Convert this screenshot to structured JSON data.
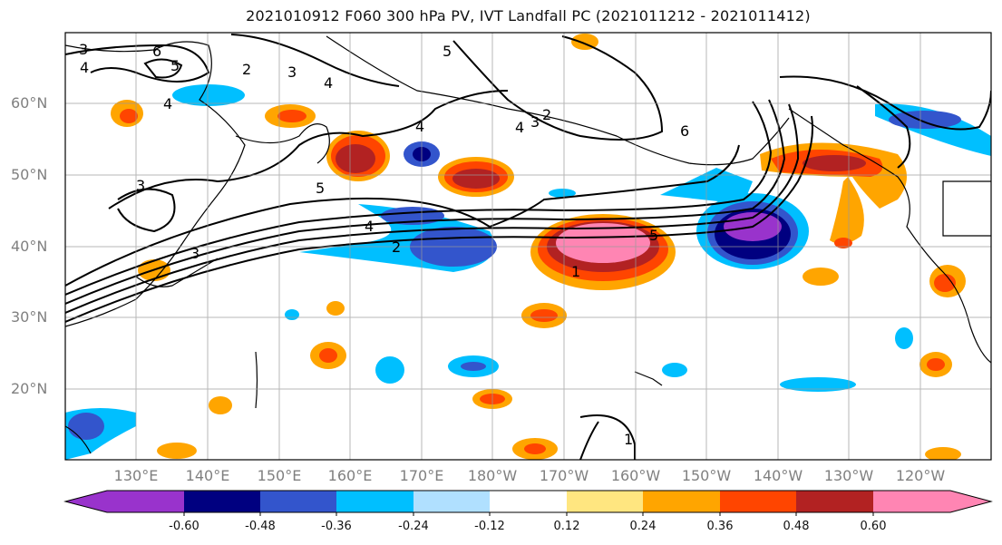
{
  "title": "2021010912 F060 300 hPa PV, IVT Landfall PC (2021011212 - 2021011412)",
  "lat_labels": [
    "60°N",
    "50°N",
    "40°N",
    "30°N",
    "20°N"
  ],
  "lon_labels": [
    "130°E",
    "140°E",
    "150°E",
    "160°E",
    "170°E",
    "180°W",
    "170°W",
    "160°W",
    "150°W",
    "140°W",
    "130°W",
    "120°W"
  ],
  "colorbar": {
    "ticks": [
      "-0.60",
      "-0.48",
      "-0.36",
      "-0.24",
      "-0.12",
      "0.12",
      "0.24",
      "0.36",
      "0.48",
      "0.60"
    ],
    "colors": [
      "#9933cc",
      "#000080",
      "#3355cc",
      "#00bfff",
      "#b0e0ff",
      "#ffffff",
      "#ffe680",
      "#ffa500",
      "#ff4500",
      "#b22222",
      "#ff85b3"
    ]
  },
  "contour_labels": [
    "6",
    "3",
    "4",
    "2",
    "3",
    "5",
    "4",
    "5",
    "3",
    "2",
    "4",
    "4",
    "6",
    "3",
    "5",
    "4",
    "2",
    "5",
    "1",
    "4",
    "1",
    "3"
  ]
}
